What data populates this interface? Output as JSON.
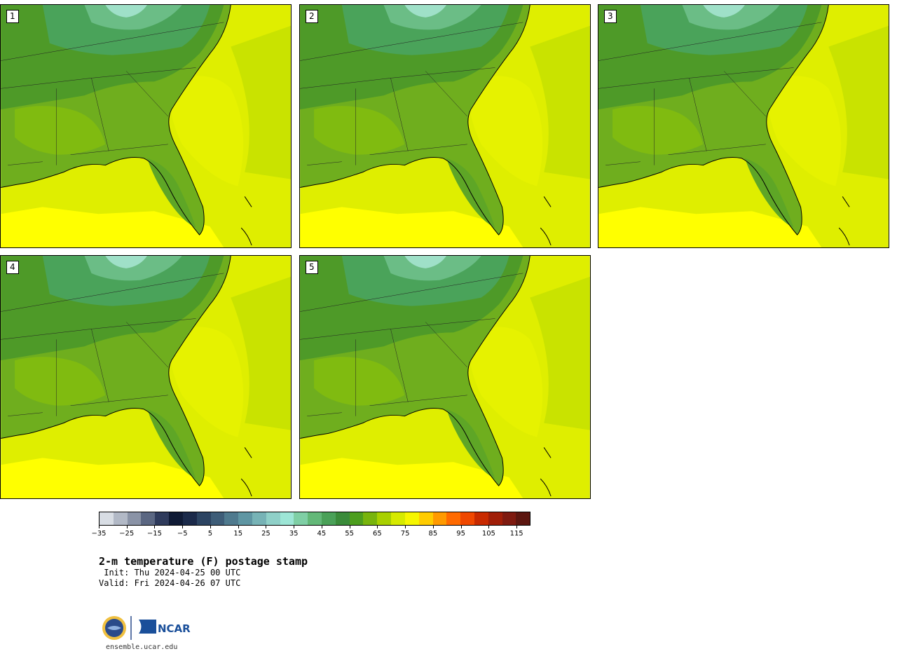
{
  "figure": {
    "title": "2-m temperature (F) postage stamp",
    "init": " Init: Thu 2024-04-25 00 UTC",
    "valid": "Valid: Fri 2024-04-26 07 UTC",
    "url": "ensemble.ucar.edu",
    "logo_text": "NCAR"
  },
  "panels": [
    {
      "label": "1"
    },
    {
      "label": "2"
    },
    {
      "label": "3"
    },
    {
      "label": "4"
    },
    {
      "label": "5"
    }
  ],
  "colorbar": {
    "colors": [
      "#d8dde4",
      "#b2b9c6",
      "#8a93a6",
      "#5b6782",
      "#2f3b5c",
      "#0f1a35",
      "#1b2a4a",
      "#2c4462",
      "#3e5d78",
      "#4f7a8e",
      "#5f96a3",
      "#77b3b6",
      "#8fd0c8",
      "#9de6d6",
      "#7fcfa5",
      "#63b878",
      "#4aa158",
      "#3a8b3a",
      "#4d9e1e",
      "#78b40d",
      "#a8d000",
      "#d6ea00",
      "#f6f600",
      "#ffcc00",
      "#ff9a00",
      "#ff6a00",
      "#f04800",
      "#c82a00",
      "#a01e08",
      "#7e1a10",
      "#5c1610"
    ],
    "tick_labels": [
      "−35",
      "−25",
      "−15",
      "−5",
      "5",
      "15",
      "25",
      "35",
      "45",
      "55",
      "65",
      "75",
      "85",
      "95",
      "105",
      "115"
    ],
    "min": -35,
    "max": 120,
    "step": 5
  }
}
